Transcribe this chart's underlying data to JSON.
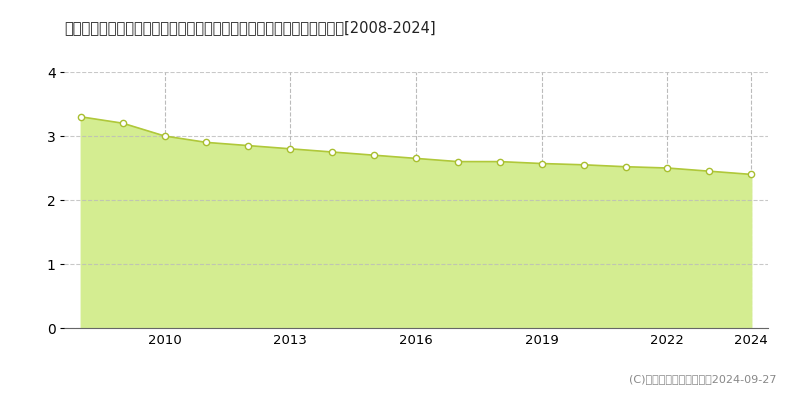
{
  "title": "新潟県三島郡出雲崎町大字小木字番場３３８番６　基準地価　地価推移[2008-2024]",
  "years": [
    2008,
    2009,
    2010,
    2011,
    2012,
    2013,
    2014,
    2015,
    2016,
    2017,
    2018,
    2019,
    2020,
    2021,
    2022,
    2023,
    2024
  ],
  "values": [
    3.3,
    3.2,
    3.0,
    2.9,
    2.85,
    2.8,
    2.75,
    2.7,
    2.65,
    2.6,
    2.6,
    2.57,
    2.55,
    2.52,
    2.5,
    2.45,
    2.4
  ],
  "fill_color": "#d4ed91",
  "line_color": "#b0c83a",
  "marker_facecolor": "#ffffff",
  "marker_edgecolor": "#a8be30",
  "background_color": "#ffffff",
  "ylim": [
    0,
    4
  ],
  "yticks": [
    0,
    1,
    2,
    3,
    4
  ],
  "xtick_positions": [
    2010,
    2013,
    2016,
    2019,
    2022,
    2024
  ],
  "grid_color_h": "#bbbbbb",
  "grid_color_v": "#aaaaaa",
  "copyright_text": "(C)土地価格ドットコム　2024-09-27"
}
